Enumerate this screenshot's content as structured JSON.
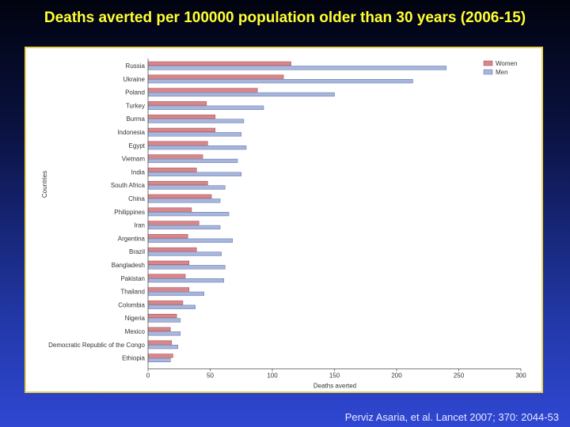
{
  "slide": {
    "title": "Deaths averted per 100000 population older than 30 years (2006-15)",
    "citation": "Perviz Asaria, et al. Lancet 2007; 370: 2044-53"
  },
  "colors": {
    "women": "#d9868a",
    "men": "#a7b6db",
    "title": "#ffff33"
  },
  "chart_data": {
    "type": "bar",
    "orientation": "horizontal",
    "title": "",
    "xlabel": "Deaths averted",
    "ylabel": "Countries",
    "xlim": [
      0,
      300
    ],
    "xticks": [
      0,
      50,
      100,
      150,
      200,
      250,
      300
    ],
    "grid": false,
    "legend_position": "top-right",
    "categories": [
      "Russia",
      "Ukraine",
      "Poland",
      "Turkey",
      "Burma",
      "Indonesia",
      "Egypt",
      "Vietnam",
      "India",
      "South Africa",
      "China",
      "Philippines",
      "Iran",
      "Argentina",
      "Brazil",
      "Bangladesh",
      "Pakistan",
      "Thailand",
      "Colombia",
      "Nigeria",
      "Mexico",
      "Democratic Republic of the Congo",
      "Ethiopia"
    ],
    "series": [
      {
        "name": "Women",
        "values": [
          115,
          109,
          88,
          47,
          54,
          54,
          48,
          44,
          39,
          48,
          51,
          35,
          41,
          32,
          39,
          33,
          30,
          33,
          28,
          23,
          18,
          19,
          20
        ]
      },
      {
        "name": "Men",
        "values": [
          240,
          213,
          150,
          93,
          77,
          75,
          79,
          72,
          75,
          62,
          58,
          65,
          58,
          68,
          59,
          62,
          61,
          45,
          38,
          26,
          26,
          24,
          18
        ]
      }
    ]
  }
}
